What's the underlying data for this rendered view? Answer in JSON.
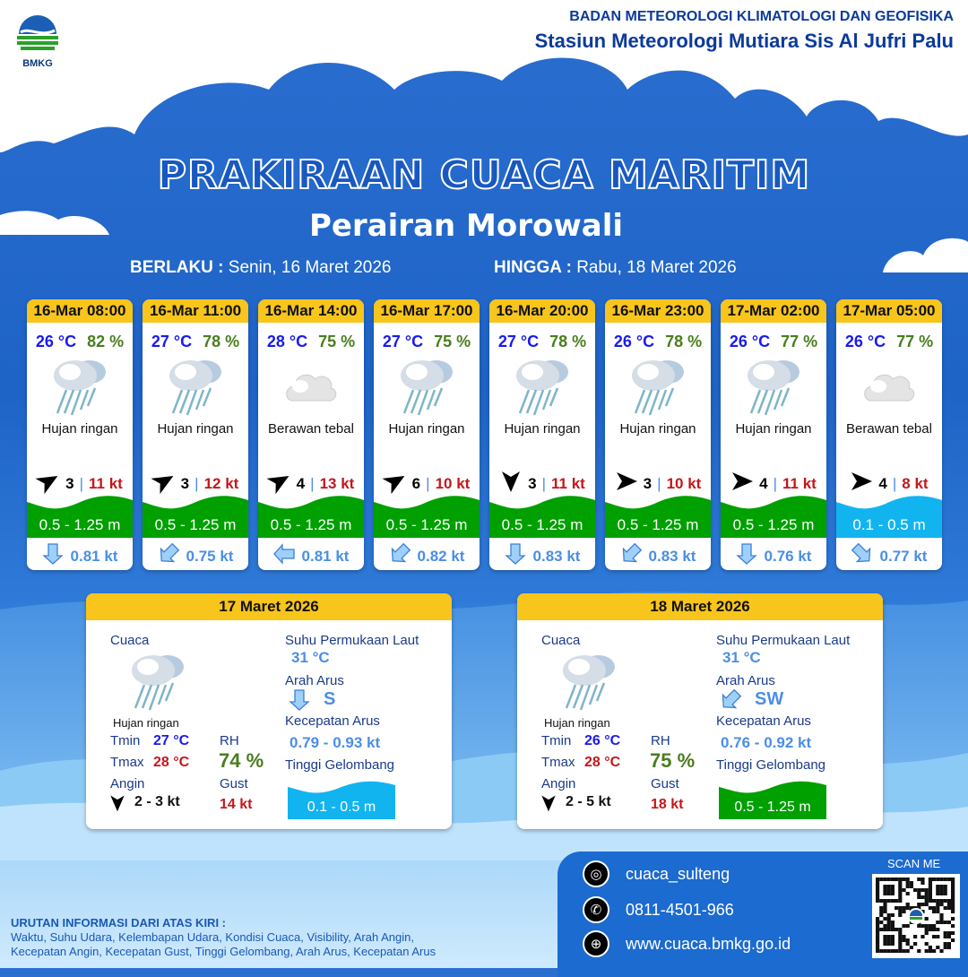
{
  "header": {
    "logo_text": "BMKG",
    "org": "BADAN METEOROLOGI KLIMATOLOGI DAN GEOFISIKA",
    "station": "Stasiun Meteorologi Mutiara Sis Al Jufri Palu"
  },
  "title": "PRAKIRAAN CUACA MARITIM",
  "subtitle": "Perairan Morowali",
  "validity": {
    "from_label": "BERLAKU :",
    "from": "Senin, 16 Maret 2026",
    "to_label": "HINGGA :",
    "to": "Rabu, 18 Maret 2026"
  },
  "colors": {
    "header_yellow": "#f7c51b",
    "temp": "#1a1aee",
    "humidity": "#4a7d1e",
    "gust": "#c4161c",
    "wave_moderate": "#00a000",
    "wave_low": "#12b4f0",
    "current": "#4a8ee6"
  },
  "forecasts": [
    {
      "time": "16-Mar 08:00",
      "temp": "26 °C",
      "rh": "82 %",
      "icon": "light-rain-icon",
      "condition": "Hujan ringan",
      "wind_dir_deg": 60,
      "wind": "3",
      "gust": "11 kt",
      "wave": "0.5 - 1.25 m",
      "wave_level": "moderate",
      "current_dir_deg": 180,
      "current": "0.81 kt"
    },
    {
      "time": "16-Mar 11:00",
      "temp": "27 °C",
      "rh": "78 %",
      "icon": "light-rain-icon",
      "condition": "Hujan ringan",
      "wind_dir_deg": 60,
      "wind": "3",
      "gust": "12 kt",
      "wave": "0.5 - 1.25 m",
      "wave_level": "moderate",
      "current_dir_deg": 225,
      "current": "0.75 kt"
    },
    {
      "time": "16-Mar 14:00",
      "temp": "28 °C",
      "rh": "75 %",
      "icon": "overcast-icon",
      "condition": "Berawan tebal",
      "wind_dir_deg": 60,
      "wind": "4",
      "gust": "13 kt",
      "wave": "0.5 - 1.25 m",
      "wave_level": "moderate",
      "current_dir_deg": 270,
      "current": "0.81 kt"
    },
    {
      "time": "16-Mar 17:00",
      "temp": "27 °C",
      "rh": "75 %",
      "icon": "light-rain-icon",
      "condition": "Hujan ringan",
      "wind_dir_deg": 60,
      "wind": "6",
      "gust": "10 kt",
      "wave": "0.5 - 1.25 m",
      "wave_level": "moderate",
      "current_dir_deg": 225,
      "current": "0.82 kt"
    },
    {
      "time": "16-Mar 20:00",
      "temp": "27 °C",
      "rh": "78 %",
      "icon": "light-rain-icon",
      "condition": "Hujan ringan",
      "wind_dir_deg": 180,
      "wind": "3",
      "gust": "11 kt",
      "wave": "0.5 - 1.25 m",
      "wave_level": "moderate",
      "current_dir_deg": 180,
      "current": "0.83 kt"
    },
    {
      "time": "16-Mar 23:00",
      "temp": "26 °C",
      "rh": "78 %",
      "icon": "light-rain-icon",
      "condition": "Hujan ringan",
      "wind_dir_deg": 90,
      "wind": "3",
      "gust": "10 kt",
      "wave": "0.5 - 1.25 m",
      "wave_level": "moderate",
      "current_dir_deg": 225,
      "current": "0.83 kt"
    },
    {
      "time": "17-Mar 02:00",
      "temp": "26 °C",
      "rh": "77 %",
      "icon": "light-rain-icon",
      "condition": "Hujan ringan",
      "wind_dir_deg": 90,
      "wind": "4",
      "gust": "11 kt",
      "wave": "0.5 - 1.25 m",
      "wave_level": "moderate",
      "current_dir_deg": 180,
      "current": "0.76 kt"
    },
    {
      "time": "17-Mar 05:00",
      "temp": "26 °C",
      "rh": "77 %",
      "icon": "overcast-icon",
      "condition": "Berawan tebal",
      "wind_dir_deg": 90,
      "wind": "4",
      "gust": "8 kt",
      "wave": "0.1 - 0.5 m",
      "wave_level": "low",
      "current_dir_deg": 135,
      "current": "0.77 kt"
    }
  ],
  "daily": [
    {
      "date": "17 Maret 2026",
      "weather_label": "Cuaca",
      "condition": "Hujan ringan",
      "tmin_label": "Tmin",
      "tmin": "27 °C",
      "tmax_label": "Tmax",
      "tmax": "28 °C",
      "rh_label": "RH",
      "rh": "74 %",
      "wind_label": "Angin",
      "wind_dir_deg": 180,
      "wind": "2  - 3 kt",
      "gust_label": "Gust",
      "gust": "14 kt",
      "sst_label": "Suhu Permukaan Laut",
      "sst": "31 °C",
      "current_dir_label": "Arah Arus",
      "current_dir": "S",
      "current_dir_deg": 180,
      "current_speed_label": "Kecepatan Arus",
      "current_speed": "0.79 - 0.93 kt",
      "wave_label": "Tinggi Gelombang",
      "wave": "0.1 - 0.5 m",
      "wave_level": "low"
    },
    {
      "date": "18 Maret 2026",
      "weather_label": "Cuaca",
      "condition": "Hujan ringan",
      "tmin_label": "Tmin",
      "tmin": "26 °C",
      "tmax_label": "Tmax",
      "tmax": "28 °C",
      "rh_label": "RH",
      "rh": "75 %",
      "wind_label": "Angin",
      "wind_dir_deg": 180,
      "wind": "2  - 5 kt",
      "gust_label": "Gust",
      "gust": "18 kt",
      "sst_label": "Suhu Permukaan Laut",
      "sst": "31 °C",
      "current_dir_label": "Arah Arus",
      "current_dir": "SW",
      "current_dir_deg": 225,
      "current_speed_label": "Kecepatan Arus",
      "current_speed": "0.76 - 0.92 kt",
      "wave_label": "Tinggi Gelombang",
      "wave": "0.5 - 1.25 m",
      "wave_level": "moderate"
    }
  ],
  "footer": {
    "info_title": "URUTAN INFORMASI DARI ATAS KIRI :",
    "info_line1": "Waktu, Suhu Udara, Kelembapan Udara, Kondisi Cuaca, Visibility, Arah Angin,",
    "info_line2": "Kecepatan Angin, Kecepatan Gust, Tinggi Gelombang, Arah Arus, Kecepatan Arus",
    "instagram": "cuaca_sulteng",
    "phone": "0811-4501-966",
    "website": "www.cuaca.bmkg.go.id",
    "scan_label": "SCAN ME"
  }
}
